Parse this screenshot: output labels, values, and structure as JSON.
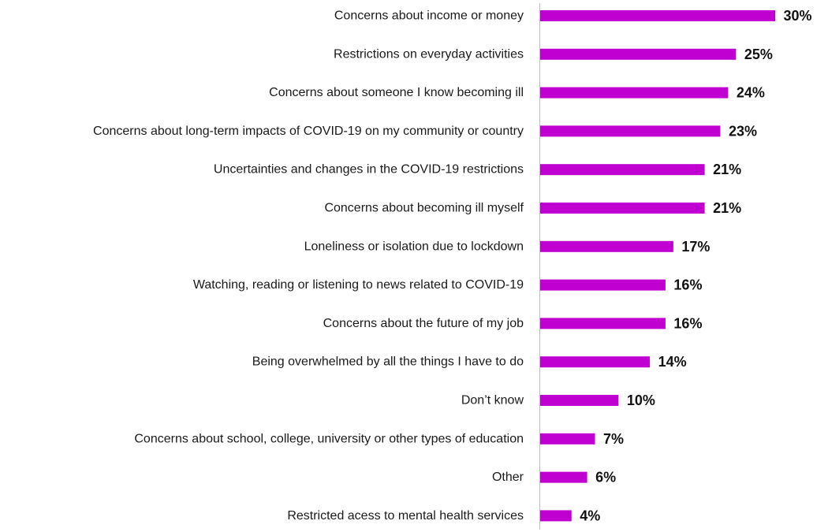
{
  "chart_data": {
    "type": "bar",
    "orientation": "horizontal",
    "categories": [
      "Concerns about income or money",
      "Restrictions on everyday activities",
      "Concerns about someone I know becoming ill",
      "Concerns about long-term impacts of COVID-19 on my community or country",
      "Uncertainties and changes in the COVID-19 restrictions",
      "Concerns about becoming ill myself",
      "Loneliness or isolation due to lockdown",
      "Watching, reading or listening to news related to COVID-19",
      "Concerns about the future of my job",
      "Being overwhelmed by all the things I have to do",
      "Don’t know",
      "Concerns about school, college, university or other types of education",
      "Other",
      "Restricted acess to mental health services"
    ],
    "values": [
      30,
      25,
      24,
      23,
      21,
      21,
      17,
      16,
      16,
      14,
      10,
      7,
      6,
      4
    ],
    "value_labels": [
      "30%",
      "25%",
      "24%",
      "23%",
      "21%",
      "21%",
      "17%",
      "16%",
      "16%",
      "14%",
      "10%",
      "7%",
      "6%",
      "4%"
    ],
    "unit": "%",
    "xlim": [
      0,
      30
    ],
    "grid": false,
    "bar_color": "#c000d0",
    "axis_color": "#bfbfbf"
  }
}
